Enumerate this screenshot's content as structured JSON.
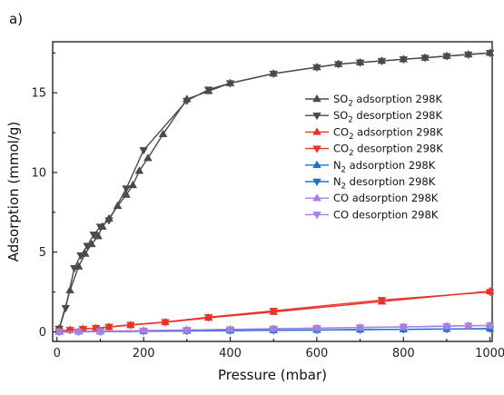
{
  "chart_data": {
    "type": "line",
    "panel_label": "a)",
    "xlabel": "Pressure (mbar)",
    "ylabel": "Adsorption (mmol/g)",
    "xlim": [
      -10,
      1005
    ],
    "ylim": [
      -0.6,
      18.2
    ],
    "xticks": [
      0,
      200,
      400,
      600,
      800,
      1000
    ],
    "yticks": [
      0,
      5,
      10,
      15
    ],
    "grid": false,
    "legend_position": "right",
    "series": [
      {
        "name": "SO2 adsorption 298K",
        "legend": {
          "main": "SO",
          "sub": "2",
          "rest": " adsorption 298K"
        },
        "color": "#4a4a4a",
        "marker": "triangle-up",
        "x": [
          5,
          30,
          50,
          65,
          80,
          95,
          105,
          120,
          140,
          160,
          175,
          190,
          210,
          245,
          300,
          350,
          400,
          500,
          600,
          650,
          700,
          750,
          800,
          850,
          900,
          950,
          1000
        ],
        "y": [
          0.2,
          2.6,
          4.1,
          4.9,
          5.5,
          6.0,
          6.6,
          7.1,
          7.9,
          8.6,
          9.2,
          10.1,
          10.9,
          12.4,
          14.6,
          15.1,
          15.6,
          16.2,
          16.6,
          16.8,
          16.9,
          17.0,
          17.1,
          17.2,
          17.3,
          17.4,
          17.5
        ]
      },
      {
        "name": "SO2 desorption 298K",
        "legend": {
          "main": "SO",
          "sub": "2",
          "rest": " desorption 298K"
        },
        "color": "#4a4a4a",
        "marker": "triangle-down",
        "x": [
          1000,
          950,
          900,
          850,
          800,
          750,
          700,
          650,
          600,
          500,
          400,
          350,
          300,
          200,
          160,
          120,
          100,
          85,
          70,
          55,
          40,
          20,
          5
        ],
        "y": [
          17.5,
          17.4,
          17.3,
          17.2,
          17.1,
          17.0,
          16.9,
          16.8,
          16.6,
          16.2,
          15.6,
          15.2,
          14.5,
          11.4,
          9.0,
          7.0,
          6.6,
          6.1,
          5.4,
          4.8,
          4.0,
          1.5,
          0.2
        ]
      },
      {
        "name": "CO2 adsorption 298K",
        "legend": {
          "main": "CO",
          "sub": "2",
          "rest": " adsorption 298K"
        },
        "color": "#e8322a",
        "marker": "triangle-up",
        "x": [
          5,
          30,
          60,
          90,
          120,
          170,
          250,
          350,
          500,
          750,
          1000
        ],
        "y": [
          0.05,
          0.12,
          0.18,
          0.23,
          0.3,
          0.42,
          0.6,
          0.88,
          1.25,
          1.9,
          2.55
        ]
      },
      {
        "name": "CO2 desorption 298K",
        "legend": {
          "main": "CO",
          "sub": "2",
          "rest": " desorption 298K"
        },
        "color": "#e8322a",
        "marker": "triangle-down",
        "x": [
          1000,
          750,
          500,
          350,
          250,
          170,
          120,
          90,
          60,
          30,
          5
        ],
        "y": [
          2.5,
          2.0,
          1.32,
          0.92,
          0.62,
          0.44,
          0.32,
          0.24,
          0.19,
          0.12,
          0.05
        ]
      },
      {
        "name": "N2 adsorption 298K",
        "legend": {
          "main": "N",
          "sub": "2",
          "rest": " adsorption 298K"
        },
        "color": "#1f6fd6",
        "marker": "triangle-up",
        "x": [
          5,
          50,
          100,
          200,
          300,
          400,
          500,
          600,
          700,
          800,
          900,
          1000
        ],
        "y": [
          0.0,
          0.01,
          0.02,
          0.04,
          0.06,
          0.08,
          0.1,
          0.12,
          0.14,
          0.16,
          0.18,
          0.2
        ]
      },
      {
        "name": "N2 desorption 298K",
        "legend": {
          "main": "N",
          "sub": "2",
          "rest": " desorption 298K"
        },
        "color": "#1f6fd6",
        "marker": "triangle-down",
        "x": [
          1000,
          900,
          800,
          700,
          600,
          500,
          400,
          300,
          200,
          100,
          50,
          5
        ],
        "y": [
          0.2,
          0.18,
          0.16,
          0.14,
          0.12,
          0.1,
          0.08,
          0.06,
          0.04,
          0.02,
          0.01,
          0.0
        ]
      },
      {
        "name": "CO adsorption 298K",
        "legend": {
          "main": "CO",
          "sub": "",
          "rest": " adsorption 298K"
        },
        "color": "#a77fe0",
        "marker": "triangle-up",
        "x": [
          5,
          50,
          100,
          200,
          300,
          400,
          500,
          600,
          700,
          800,
          900,
          950,
          1000
        ],
        "y": [
          0.0,
          0.02,
          0.04,
          0.08,
          0.12,
          0.15,
          0.19,
          0.23,
          0.27,
          0.31,
          0.35,
          0.38,
          0.4
        ]
      },
      {
        "name": "CO desorption 298K",
        "legend": {
          "main": "CO",
          "sub": "",
          "rest": " desorption 298K"
        },
        "color": "#a77fe0",
        "marker": "triangle-down",
        "x": [
          1000,
          950,
          900,
          800,
          700,
          600,
          500,
          400,
          300,
          200,
          100,
          50,
          5
        ],
        "y": [
          0.4,
          0.39,
          0.36,
          0.32,
          0.28,
          0.24,
          0.2,
          0.16,
          0.12,
          0.08,
          0.04,
          0.02,
          0.0
        ]
      }
    ]
  }
}
